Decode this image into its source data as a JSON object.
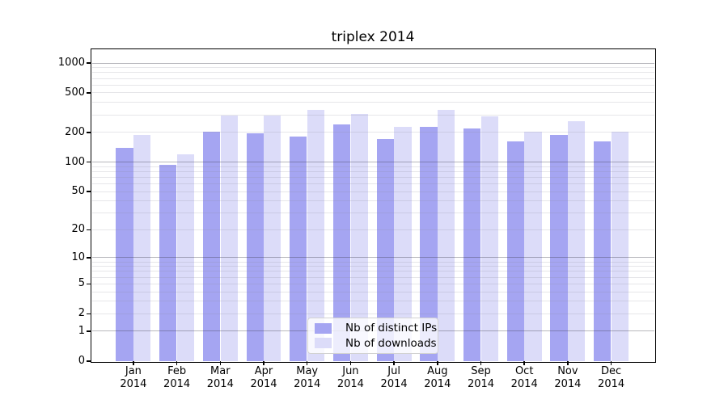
{
  "title": "triplex 2014",
  "chart_data": {
    "type": "bar",
    "title": "triplex 2014",
    "categories": [
      "Jan",
      "Feb",
      "Mar",
      "Apr",
      "May",
      "Jun",
      "Jul",
      "Aug",
      "Sep",
      "Oct",
      "Nov",
      "Dec"
    ],
    "category_year": "2014",
    "series": [
      {
        "name": "Nb of distinct IPs",
        "color": "#a5a5f2",
        "values": [
          140,
          94,
          203,
          197,
          180,
          242,
          170,
          228,
          220,
          163,
          188,
          163
        ]
      },
      {
        "name": "Nb of downloads",
        "color": "#dcdcf9",
        "values": [
          187,
          120,
          298,
          298,
          335,
          307,
          227,
          335,
          292,
          201,
          258,
          201
        ]
      }
    ],
    "yscale": "log1p",
    "ylim": [
      0,
      1350
    ],
    "yticks": [
      0,
      1,
      2,
      5,
      10,
      20,
      50,
      100,
      200,
      500,
      1000
    ],
    "ytick_labels": [
      "0",
      "1",
      "2",
      "5",
      "10",
      "20",
      "50",
      "100",
      "200",
      "500",
      "1000"
    ],
    "grid": {
      "orientation": "horizontal",
      "major_at": [
        1,
        10,
        100,
        1000
      ],
      "minor_multiples_per_decade": [
        2,
        3,
        4,
        5,
        6,
        7,
        8,
        9
      ],
      "major_color": "#b3b3b3",
      "minor_color": "#e7e7e8"
    },
    "legend": {
      "position": "lower center"
    },
    "axis_color": "#000000",
    "background_color": "#ffffff",
    "bar_color_distinct_ips": "#a5a5f2",
    "bar_color_downloads": "#dcdcf9"
  }
}
